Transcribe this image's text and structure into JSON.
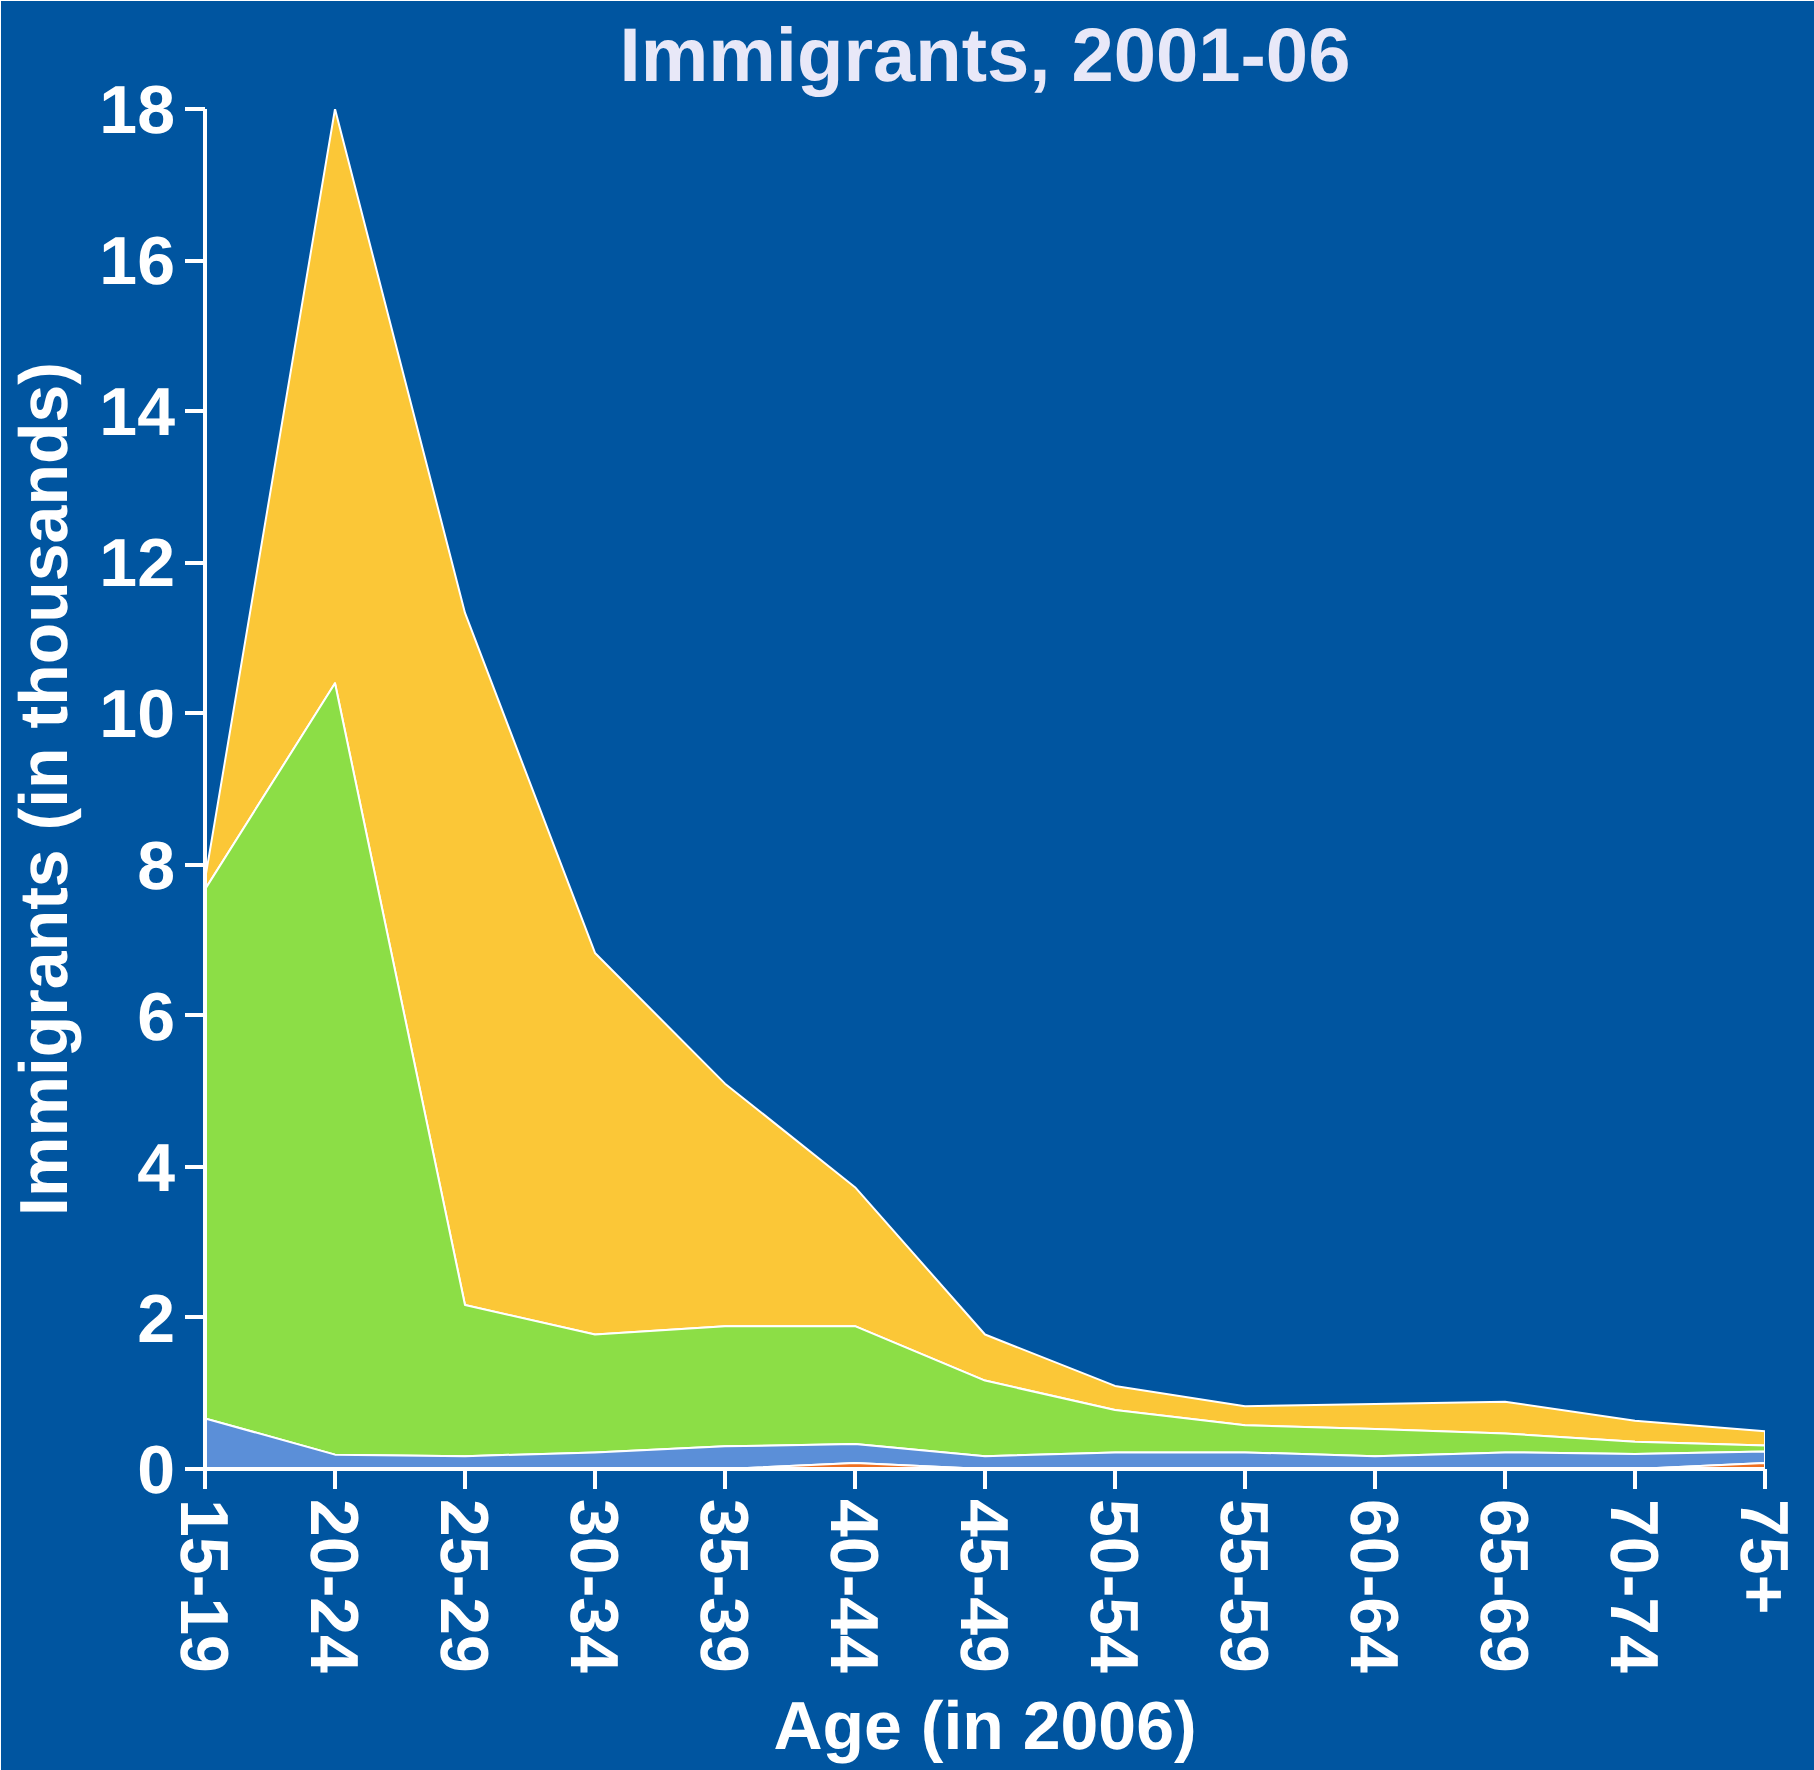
{
  "chart_data": {
    "type": "area",
    "title": "Immigrants, 2001-06",
    "xlabel": "Age (in 2006)",
    "ylabel": "Immigrants (in thousands)",
    "categories": [
      "15-19",
      "20-24",
      "25-29",
      "30-34",
      "35-39",
      "40-44",
      "45-49",
      "50-54",
      "55-59",
      "60-64",
      "65-69",
      "70-74",
      "75+"
    ],
    "stacked": true,
    "ylim": [
      0,
      18
    ],
    "yticks": [
      0,
      2,
      4,
      6,
      8,
      10,
      12,
      14,
      16,
      18
    ],
    "grid": false,
    "series": [
      {
        "color": "#f07020",
        "values": [
          0,
          0,
          0,
          0,
          0,
          0.08,
          0,
          0,
          0,
          0,
          0,
          0,
          0.08
        ]
      },
      {
        "color": "#5b8fd8",
        "values": [
          0.67,
          0.19,
          0.17,
          0.22,
          0.3,
          0.25,
          0.17,
          0.22,
          0.22,
          0.17,
          0.22,
          0.2,
          0.15
        ]
      },
      {
        "color": "#8cde46",
        "values": [
          7.0,
          10.21,
          2.0,
          1.56,
          1.59,
          1.56,
          1.0,
          0.56,
          0.36,
          0.36,
          0.25,
          0.16,
          0.08
        ]
      },
      {
        "color": "#fbc737",
        "values": [
          0.13,
          7.6,
          9.16,
          5.05,
          3.21,
          1.84,
          0.61,
          0.32,
          0.25,
          0.33,
          0.42,
          0.28,
          0.19
        ]
      }
    ]
  }
}
